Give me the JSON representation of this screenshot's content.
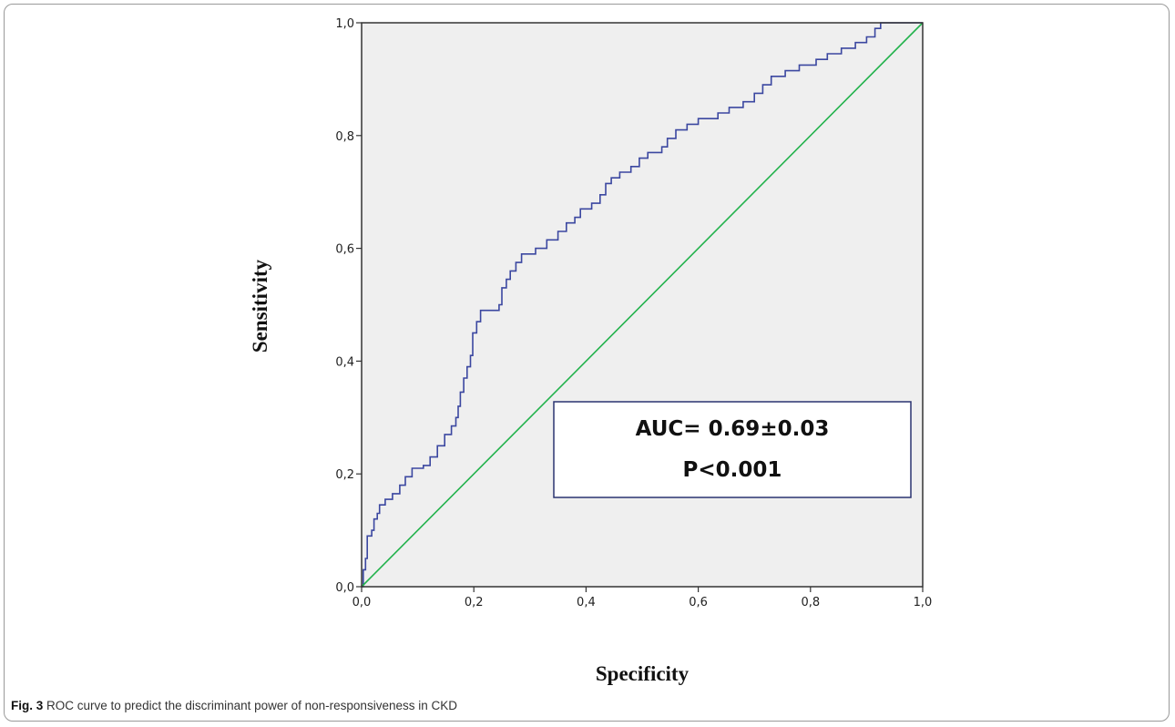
{
  "chart_data": {
    "type": "line",
    "xlabel": "Specificity",
    "ylabel": "Sensitivity",
    "xlim": [
      0.0,
      1.0
    ],
    "ylim": [
      0.0,
      1.0
    ],
    "x_ticks": [
      "0,0",
      "0,2",
      "0,4",
      "0,6",
      "0,8",
      "1,0"
    ],
    "y_ticks": [
      "0,0",
      "0,2",
      "0,4",
      "0,6",
      "0,8",
      "1,0"
    ],
    "grid": false,
    "background": "#efefef",
    "series": [
      {
        "color": "#3b47a0",
        "step": true,
        "points": [
          [
            0.0,
            0.0
          ],
          [
            0.003,
            0.03
          ],
          [
            0.007,
            0.05
          ],
          [
            0.01,
            0.09
          ],
          [
            0.018,
            0.1
          ],
          [
            0.022,
            0.12
          ],
          [
            0.028,
            0.13
          ],
          [
            0.032,
            0.145
          ],
          [
            0.042,
            0.155
          ],
          [
            0.055,
            0.165
          ],
          [
            0.068,
            0.18
          ],
          [
            0.078,
            0.195
          ],
          [
            0.09,
            0.21
          ],
          [
            0.11,
            0.215
          ],
          [
            0.122,
            0.23
          ],
          [
            0.135,
            0.25
          ],
          [
            0.148,
            0.27
          ],
          [
            0.16,
            0.285
          ],
          [
            0.168,
            0.3
          ],
          [
            0.172,
            0.32
          ],
          [
            0.176,
            0.345
          ],
          [
            0.182,
            0.37
          ],
          [
            0.188,
            0.39
          ],
          [
            0.194,
            0.41
          ],
          [
            0.198,
            0.45
          ],
          [
            0.205,
            0.47
          ],
          [
            0.212,
            0.49
          ],
          [
            0.245,
            0.5
          ],
          [
            0.25,
            0.53
          ],
          [
            0.258,
            0.545
          ],
          [
            0.265,
            0.56
          ],
          [
            0.275,
            0.575
          ],
          [
            0.285,
            0.59
          ],
          [
            0.31,
            0.6
          ],
          [
            0.33,
            0.615
          ],
          [
            0.35,
            0.63
          ],
          [
            0.365,
            0.645
          ],
          [
            0.38,
            0.655
          ],
          [
            0.39,
            0.67
          ],
          [
            0.41,
            0.68
          ],
          [
            0.425,
            0.695
          ],
          [
            0.435,
            0.715
          ],
          [
            0.445,
            0.725
          ],
          [
            0.46,
            0.735
          ],
          [
            0.48,
            0.745
          ],
          [
            0.495,
            0.76
          ],
          [
            0.51,
            0.77
          ],
          [
            0.535,
            0.78
          ],
          [
            0.545,
            0.795
          ],
          [
            0.56,
            0.81
          ],
          [
            0.58,
            0.82
          ],
          [
            0.6,
            0.83
          ],
          [
            0.635,
            0.84
          ],
          [
            0.655,
            0.85
          ],
          [
            0.68,
            0.86
          ],
          [
            0.7,
            0.875
          ],
          [
            0.715,
            0.89
          ],
          [
            0.73,
            0.905
          ],
          [
            0.755,
            0.915
          ],
          [
            0.78,
            0.925
          ],
          [
            0.81,
            0.935
          ],
          [
            0.83,
            0.945
          ],
          [
            0.855,
            0.955
          ],
          [
            0.88,
            0.965
          ],
          [
            0.9,
            0.975
          ],
          [
            0.915,
            0.99
          ],
          [
            0.925,
            1.0
          ],
          [
            1.0,
            1.0
          ]
        ]
      },
      {
        "color": "#22b24c",
        "points": [
          [
            0.0,
            0.0
          ],
          [
            1.0,
            1.0
          ]
        ]
      }
    ],
    "annotations": [
      "AUC= 0.69±0.03",
      "P<0.001"
    ]
  },
  "caption": {
    "label": "Fig. 3",
    "text": "ROC curve to predict the discriminant power of non-responsiveness in CKD"
  }
}
